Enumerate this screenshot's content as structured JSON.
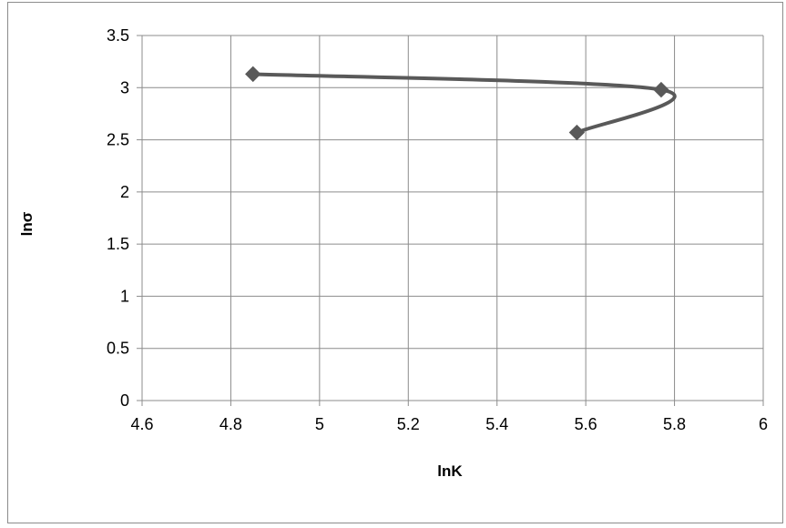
{
  "chart_data": {
    "type": "scatter",
    "title": "",
    "xlabel": "lnK",
    "ylabel": "lnσ",
    "xlim": [
      4.6,
      6
    ],
    "ylim": [
      0,
      3.5
    ],
    "x_ticks": [
      4.6,
      4.8,
      5,
      5.2,
      5.4,
      5.6,
      5.8,
      6
    ],
    "x_tick_labels": [
      "4.6",
      "4.8",
      "5",
      "5.2",
      "5.4",
      "5.6",
      "5.8",
      "6"
    ],
    "y_ticks": [
      0,
      0.5,
      1,
      1.5,
      2,
      2.5,
      3,
      3.5
    ],
    "y_tick_labels": [
      "0",
      "0.5",
      "1",
      "1.5",
      "2",
      "2.5",
      "3",
      "3.5"
    ],
    "grid": true,
    "legend": "none",
    "line_style": "smoothed",
    "marker": "diamond",
    "series": [
      {
        "color": "#595959",
        "x": [
          4.85,
          5.77,
          5.58
        ],
        "y": [
          3.13,
          2.98,
          2.57
        ]
      }
    ]
  }
}
